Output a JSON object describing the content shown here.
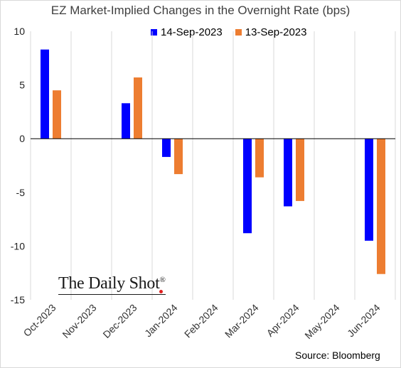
{
  "chart_data": {
    "type": "bar",
    "title": "EZ Market-Implied Changes in the Overnight Rate (bps)",
    "categories": [
      "Oct-2023",
      "Nov-2023",
      "Dec-2023",
      "Jan-2024",
      "Feb-2024",
      "Mar-2024",
      "Apr-2024",
      "May-2024",
      "Jun-2024"
    ],
    "series": [
      {
        "name": "14-Sep-2023",
        "color": "#0000ff",
        "values": [
          8.3,
          null,
          3.3,
          -1.7,
          null,
          -8.8,
          -6.3,
          null,
          -9.5
        ]
      },
      {
        "name": "13-Sep-2023",
        "color": "#ed7d31",
        "values": [
          4.5,
          null,
          5.7,
          -3.3,
          null,
          -3.6,
          -5.8,
          null,
          -12.6
        ]
      }
    ],
    "ylim": [
      -15,
      10
    ],
    "yticks": [
      10,
      5,
      0,
      -5,
      -10,
      -15
    ],
    "grid": true,
    "legend": "top-right",
    "xlabel": "",
    "ylabel": ""
  },
  "watermark": {
    "text": "The Daily Shot",
    "mark": "®"
  },
  "source": "Source: Bloomberg"
}
